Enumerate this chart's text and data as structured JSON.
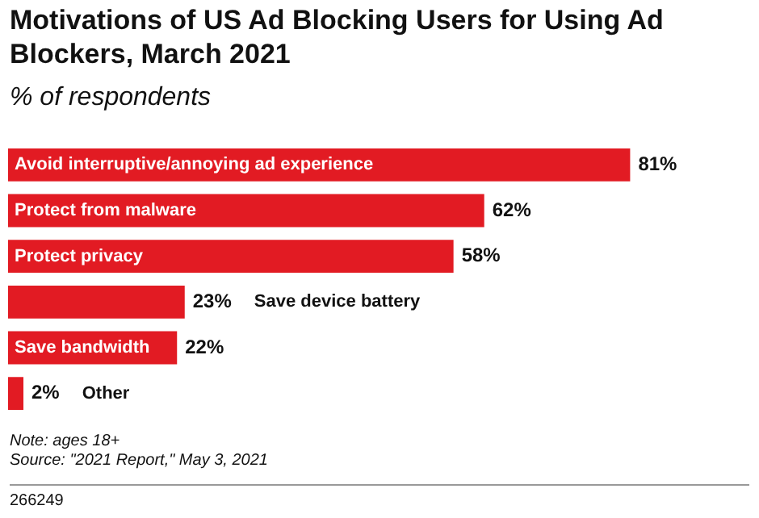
{
  "chart_data": {
    "type": "bar",
    "orientation": "horizontal",
    "title": "Motivations of US Ad Blocking Users for Using Ad Blockers, March 2021",
    "subtitle": "% of respondents",
    "categories": [
      "Avoid interruptive/annoying ad experience",
      "Protect from malware",
      "Protect privacy",
      "Save device battery",
      "Save bandwidth",
      "Other"
    ],
    "values": [
      81,
      62,
      58,
      23,
      22,
      2
    ],
    "value_labels": [
      "81%",
      "62%",
      "58%",
      "23%",
      "22%",
      "2%"
    ],
    "color": "#e21b23",
    "annotations": [
      "Note: ages 18+",
      "Source: \"2021 Report,\" May 3, 2021",
      "266249"
    ]
  }
}
